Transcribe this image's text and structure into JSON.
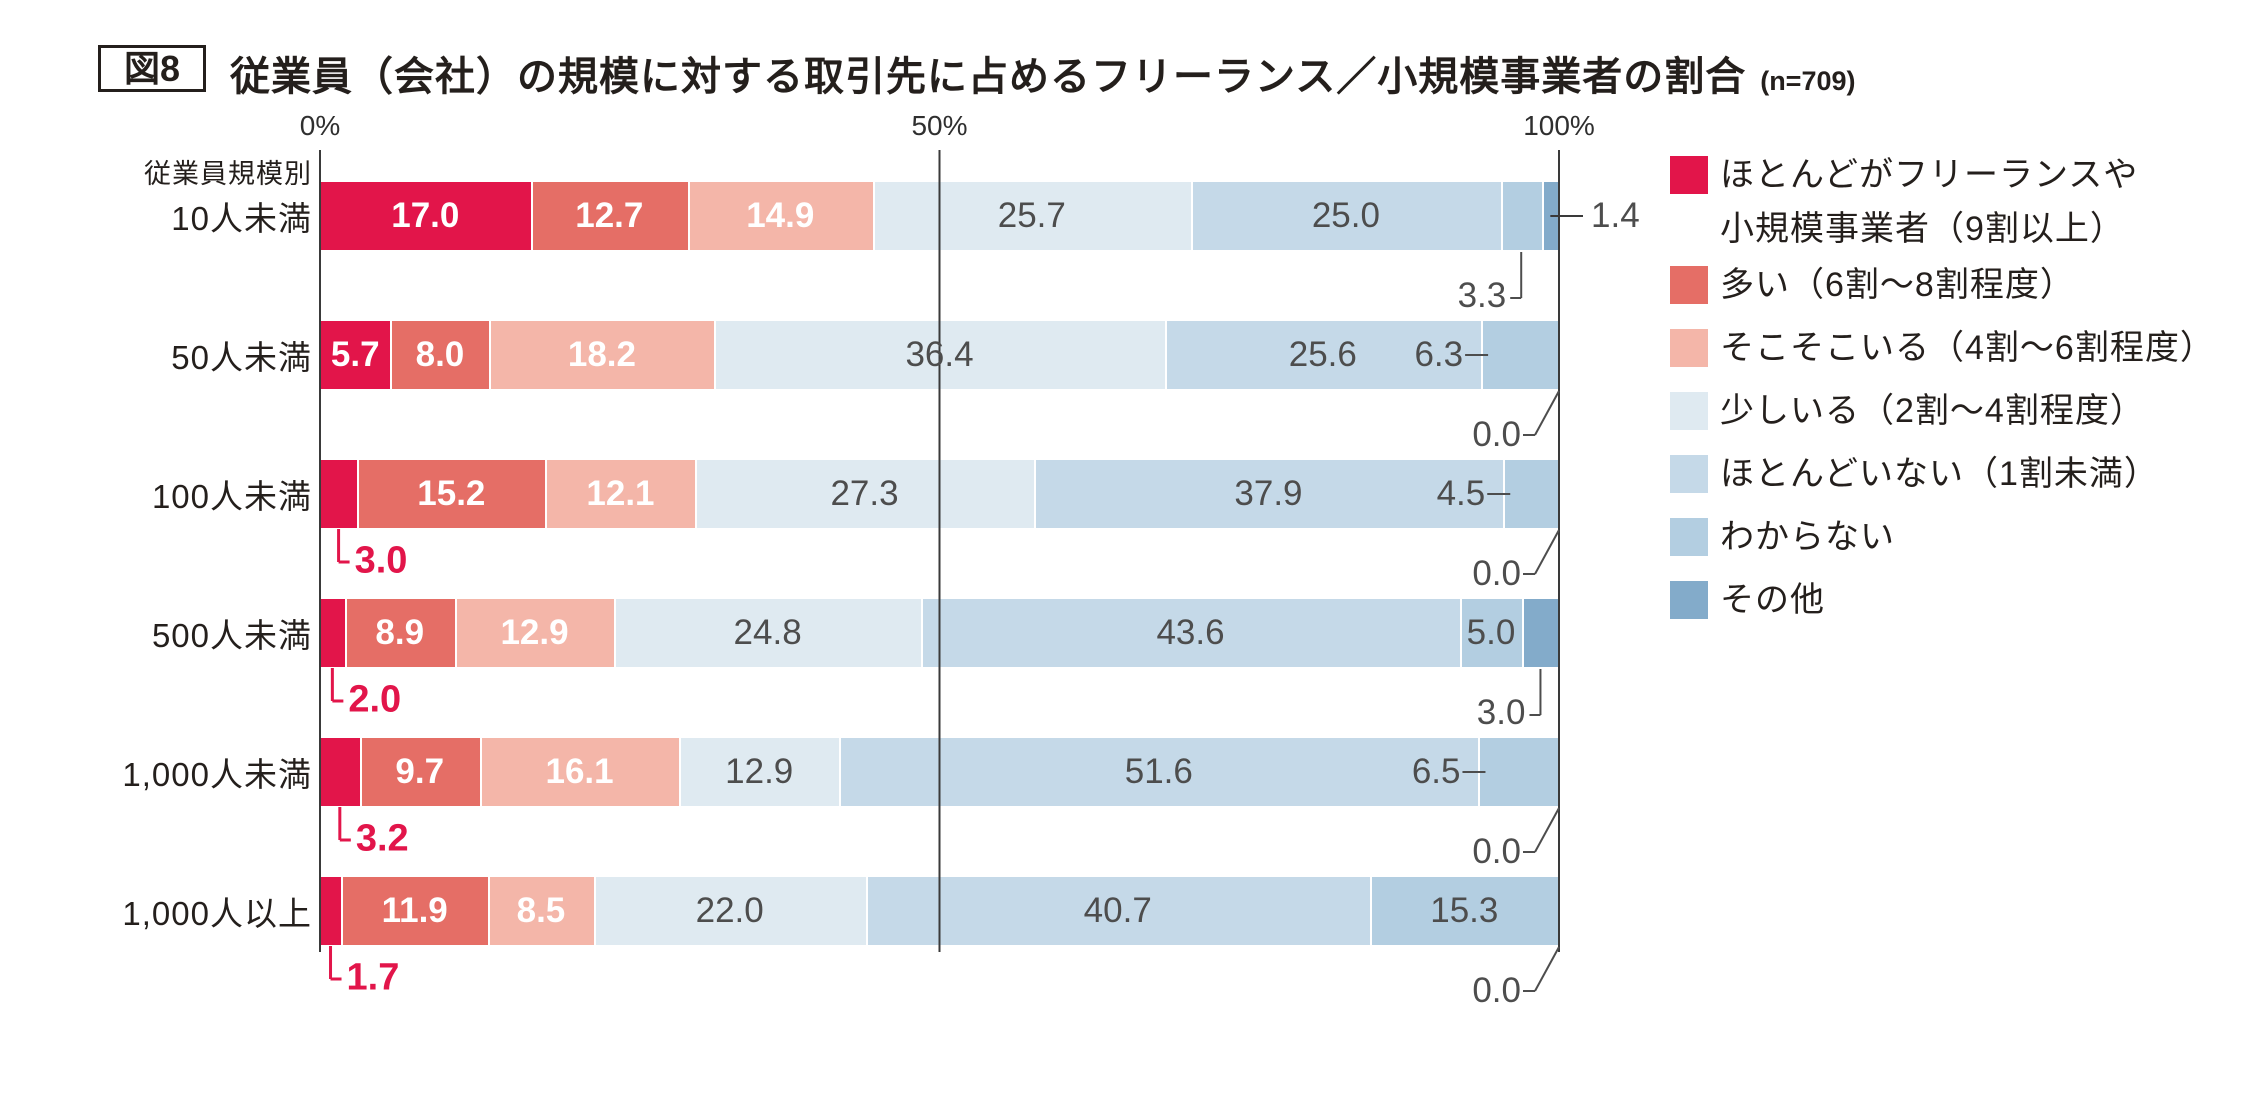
{
  "header": {
    "figure_label": "図8",
    "title": "従業員（会社）の規模に対する取引先に占めるフリーランス／小規模事業者の割合",
    "sample_size": "(n=709)"
  },
  "chart_data": {
    "type": "bar",
    "subtype": "horizontal-stacked-percent",
    "title": "従業員（会社）の規模に対する取引先に占めるフリーランス／小規模事業者の割合",
    "sample_size": "(n=709)",
    "axis_label": "従業員規模別",
    "xlim": [
      0,
      100
    ],
    "x_ticks": [
      {
        "label": "0%",
        "pct": 0
      },
      {
        "label": "50%",
        "pct": 50
      },
      {
        "label": "100%",
        "pct": 100
      }
    ],
    "grid": "vertical-lines-at-ticks",
    "legend_position": "right",
    "series": [
      {
        "name": "ほとんどがフリーランスや小規模事業者（9割以上）",
        "legend_lines": [
          "ほとんどがフリーランスや",
          "小規模事業者（9割以上）"
        ],
        "color": "#e2154a"
      },
      {
        "name": "多い（6割～8割程度）",
        "color": "#e56e66"
      },
      {
        "name": "そこそこいる（4割～6割程度）",
        "color": "#f4b6a9"
      },
      {
        "name": "少しいる（2割～4割程度）",
        "color": "#dfeaf1"
      },
      {
        "name": "ほとんどいない（1割未満）",
        "color": "#c5d9e8"
      },
      {
        "name": "わからない",
        "color": "#b3cee1"
      },
      {
        "name": "その他",
        "color": "#83abca"
      }
    ],
    "categories": [
      "10人未満",
      "50人未満",
      "100人未満",
      "500人未満",
      "1,000人未満",
      "1,000人以上"
    ],
    "rows": [
      {
        "category": "10人未満",
        "values": [
          17.0,
          12.7,
          14.9,
          25.7,
          25.0,
          3.3,
          1.4
        ],
        "label_modes": [
          "in",
          "in",
          "in",
          "in",
          "in",
          "below-elbow",
          "right"
        ]
      },
      {
        "category": "50人未満",
        "values": [
          5.7,
          8.0,
          18.2,
          36.4,
          25.6,
          6.3,
          0.0
        ],
        "label_modes": [
          "in",
          "in",
          "in",
          "in",
          "in",
          "dash",
          "below-diag"
        ]
      },
      {
        "category": "100人未満",
        "values": [
          3.0,
          15.2,
          12.1,
          27.3,
          37.9,
          4.5,
          0.0
        ],
        "label_modes": [
          "red-below",
          "in",
          "in",
          "in",
          "in",
          "dash",
          "below-diag"
        ]
      },
      {
        "category": "500人未満",
        "values": [
          2.0,
          8.9,
          12.9,
          24.8,
          43.6,
          5.0,
          3.0
        ],
        "label_modes": [
          "red-below",
          "in",
          "in",
          "in",
          "in",
          "in",
          "below-elbow"
        ]
      },
      {
        "category": "1,000人未満",
        "values": [
          3.2,
          9.7,
          16.1,
          12.9,
          51.6,
          6.5,
          0.0
        ],
        "label_modes": [
          "red-below",
          "in",
          "in",
          "in",
          "in",
          "dash",
          "below-diag"
        ]
      },
      {
        "category": "1,000人以上",
        "values": [
          1.7,
          11.9,
          8.5,
          22.0,
          40.7,
          15.3,
          0.0
        ],
        "label_modes": [
          "red-below",
          "in",
          "in",
          "in",
          "in",
          "in",
          "below-diag"
        ]
      }
    ],
    "colors": {
      "value_on_warm": "#ffffff",
      "value_on_cool": "#4d4d4d",
      "callout_red": "#e2154a",
      "callout_gray": "#4d4d4d",
      "gridline": "#3a3a3a"
    }
  }
}
